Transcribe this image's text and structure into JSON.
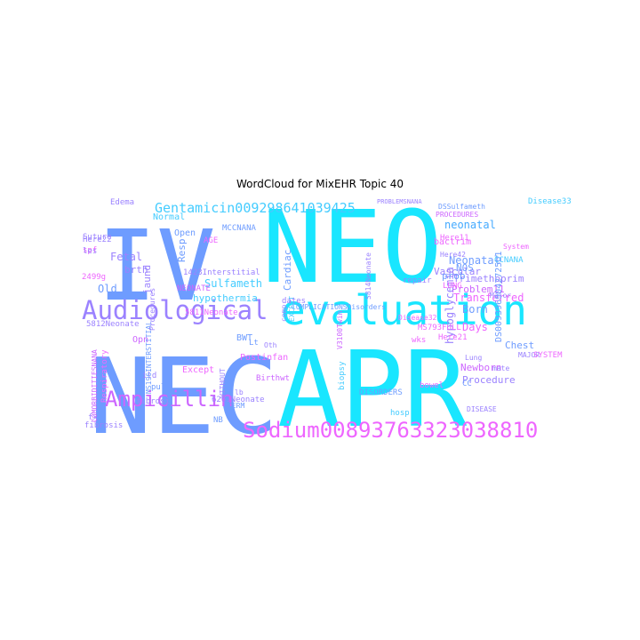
{
  "title": "WordCloud for MixEHR Topic 40",
  "palette": {
    "cyan": "#19e6ff",
    "blue": "#6e9cff",
    "purple": "#9b82ff",
    "magenta": "#ee66ff",
    "pink": "#ff66ee"
  },
  "words": [
    {
      "text": "NEO",
      "color": "#19e6ff"
    },
    {
      "text": "APR",
      "color": "#19e6ff"
    },
    {
      "text": "NEC",
      "color": "#6e9cff"
    },
    {
      "text": "IV",
      "color": "#6e9cff"
    },
    {
      "text": "evaluation",
      "color": "#19e6ff"
    },
    {
      "text": "Audiological",
      "color": "#9b82ff"
    },
    {
      "text": "Sodium00893763323038810",
      "color": "#ee66ff"
    },
    {
      "text": "Ampicillin",
      "color": "#cc66ff"
    },
    {
      "text": "Gentamicin00929864103942​5",
      "color": "#44ccff"
    },
    {
      "text": "neonatal",
      "color": "#44aaff"
    },
    {
      "text": "Neonatal",
      "color": "#6e9cff"
    },
    {
      "text": "Trimethoprim",
      "color": "#9b82ff"
    },
    {
      "text": "Problem11",
      "color": "#cc66ff"
    },
    {
      "text": "hypoglycemia",
      "color": "#9b82ff"
    },
    {
      "text": "Transferred",
      "color": "#ee66ff"
    },
    {
      "text": "Born",
      "color": "#6e9cff"
    },
    {
      "text": "Days",
      "color": "#ee66ff"
    },
    {
      "text": "Newborn",
      "color": "#cc66ff"
    },
    {
      "text": "Procedure",
      "color": "#9b82ff"
    },
    {
      "text": "Chest",
      "color": "#6e9cff"
    },
    {
      "text": "Fetal",
      "color": "#9b82ff"
    },
    {
      "text": "Old",
      "color": "#6e9cff"
    },
    {
      "text": "brth",
      "color": "#9b82ff"
    },
    {
      "text": "Sulfameth",
      "color": "#44ccff"
    },
    {
      "text": "hypothermia",
      "color": "#44ccff"
    },
    {
      "text": "Cardiac",
      "color": "#6e9cff"
    },
    {
      "text": "Vascular",
      "color": "#9b82ff"
    },
    {
      "text": "prob",
      "color": "#6e9cff"
    },
    {
      "text": "NOS",
      "color": "#6e9cff"
    },
    {
      "text": "Resp",
      "color": "#6e9cff"
    },
    {
      "text": "jaund",
      "color": "#9b82ff"
    },
    {
      "text": "Edema",
      "color": "#9b82ff"
    },
    {
      "text": "Normal",
      "color": "#44ccff"
    },
    {
      "text": "Open",
      "color": "#6e9cff"
    },
    {
      "text": "Here22",
      "color": "#9b82ff"
    },
    {
      "text": "2499g",
      "color": "#ee66ff"
    },
    {
      "text": "5812Neonate",
      "color": "#9b82ff"
    },
    {
      "text": "5811Neonate",
      "color": "#ee66ff"
    },
    {
      "text": "Except",
      "color": "#ee66ff"
    },
    {
      "text": "Respiratory",
      "color": "#ee66ff"
    },
    {
      "text": "Opn",
      "color": "#cc66ff"
    },
    {
      "text": "fibrosis",
      "color": "#9b82ff"
    },
    {
      "text": "Postinfan",
      "color": "#ee66ff"
    },
    {
      "text": "BWT",
      "color": "#6e9cff"
    },
    {
      "text": "Birthwt",
      "color": "#cc66ff"
    },
    {
      "text": "TERM",
      "color": "#6e9cff"
    },
    {
      "text": "DISORDERS",
      "color": "#6e9cff"
    },
    {
      "text": "COMPLICATIONSDisorders",
      "color": "#6e9cff"
    },
    {
      "text": "MS793FULL",
      "color": "#ee66ff"
    },
    {
      "text": "Disease32",
      "color": "#ee66ff"
    },
    {
      "text": "Disease33",
      "color": "#44ccff"
    },
    {
      "text": "PROBLEMSNANA",
      "color": "#9b82ff"
    },
    {
      "text": "PROCEDURES",
      "color": "#cc66ff"
    },
    {
      "text": "DSSulfameth",
      "color": "#6e9cff"
    },
    {
      "text": "Here11",
      "color": "#ee66ff"
    },
    {
      "text": "Here42",
      "color": "#9b82ff"
    },
    {
      "text": "Here21",
      "color": "#ee66ff"
    },
    {
      "text": "LUNG",
      "color": "#ee66ff"
    },
    {
      "text": "bactrim",
      "color": "#ee66ff"
    },
    {
      "text": "repair",
      "color": "#9b82ff"
    },
    {
      "text": "Major",
      "color": "#9b82ff"
    },
    {
      "text": "MAJOR",
      "color": "#9b82ff"
    },
    {
      "text": "SYSTEM",
      "color": "#ee66ff"
    },
    {
      "text": "System",
      "color": "#ee66ff"
    },
    {
      "text": "CCNANA",
      "color": "#44ccff"
    },
    {
      "text": "bowel",
      "color": "#ee66ff"
    },
    {
      "text": "hosp",
      "color": "#44ccff"
    },
    {
      "text": "CC",
      "color": "#6e9cff"
    },
    {
      "text": "mate",
      "color": "#9b82ff"
    },
    {
      "text": "DISEASE",
      "color": "#9b82ff"
    },
    {
      "text": "biopsy",
      "color": "#44ccff"
    },
    {
      "text": "V3100Twin",
      "color": "#cc66ff"
    },
    {
      "text": "NB",
      "color": "#6e9cff"
    },
    {
      "text": "lb",
      "color": "#9b82ff"
    },
    {
      "text": "6261Neonate",
      "color": "#9b82ff"
    },
    {
      "text": "ild",
      "color": "#9b82ff"
    },
    {
      "text": "pulm",
      "color": "#6e9cff"
    },
    {
      "text": "fibrosi",
      "color": "#9b82ff"
    },
    {
      "text": "fx",
      "color": "#9b82ff"
    },
    {
      "text": "COMORBIDITIESNANA",
      "color": "#cc66ff"
    },
    {
      "text": "MS196INTERSTITIAL",
      "color": "#6e9cff"
    },
    {
      "text": "1423Interstitial",
      "color": "#9b82ff"
    },
    {
      "text": "NEONATE",
      "color": "#cc66ff"
    },
    {
      "text": "AGE",
      "color": "#ee66ff"
    },
    {
      "text": "MCCNANA",
      "color": "#6e9cff"
    },
    {
      "text": "Suture",
      "color": "#9b82ff"
    },
    {
      "text": "Procedures",
      "color": "#9b82ff"
    },
    {
      "text": "spf",
      "color": "#ee66ff"
    },
    {
      "text": "les",
      "color": "#9b82ff"
    },
    {
      "text": "WITHOUT",
      "color": "#9b82ff"
    },
    {
      "text": "Oth",
      "color": "#9b82ff"
    },
    {
      "text": "EXCEPT",
      "color": "#44ccff"
    },
    {
      "text": "comp",
      "color": "#9b82ff"
    },
    {
      "text": "wks",
      "color": "#ee66ff"
    },
    {
      "text": "Lung",
      "color": "#9b82ff"
    },
    {
      "text": "dates",
      "color": "#9b82ff"
    },
    {
      "text": "Lt",
      "color": "#6e9cff"
    },
    {
      "text": "S814Neonate",
      "color": "#9b82ff"
    },
    {
      "text": "DS0093969042725b1",
      "color": "#6e9cff"
    }
  ]
}
